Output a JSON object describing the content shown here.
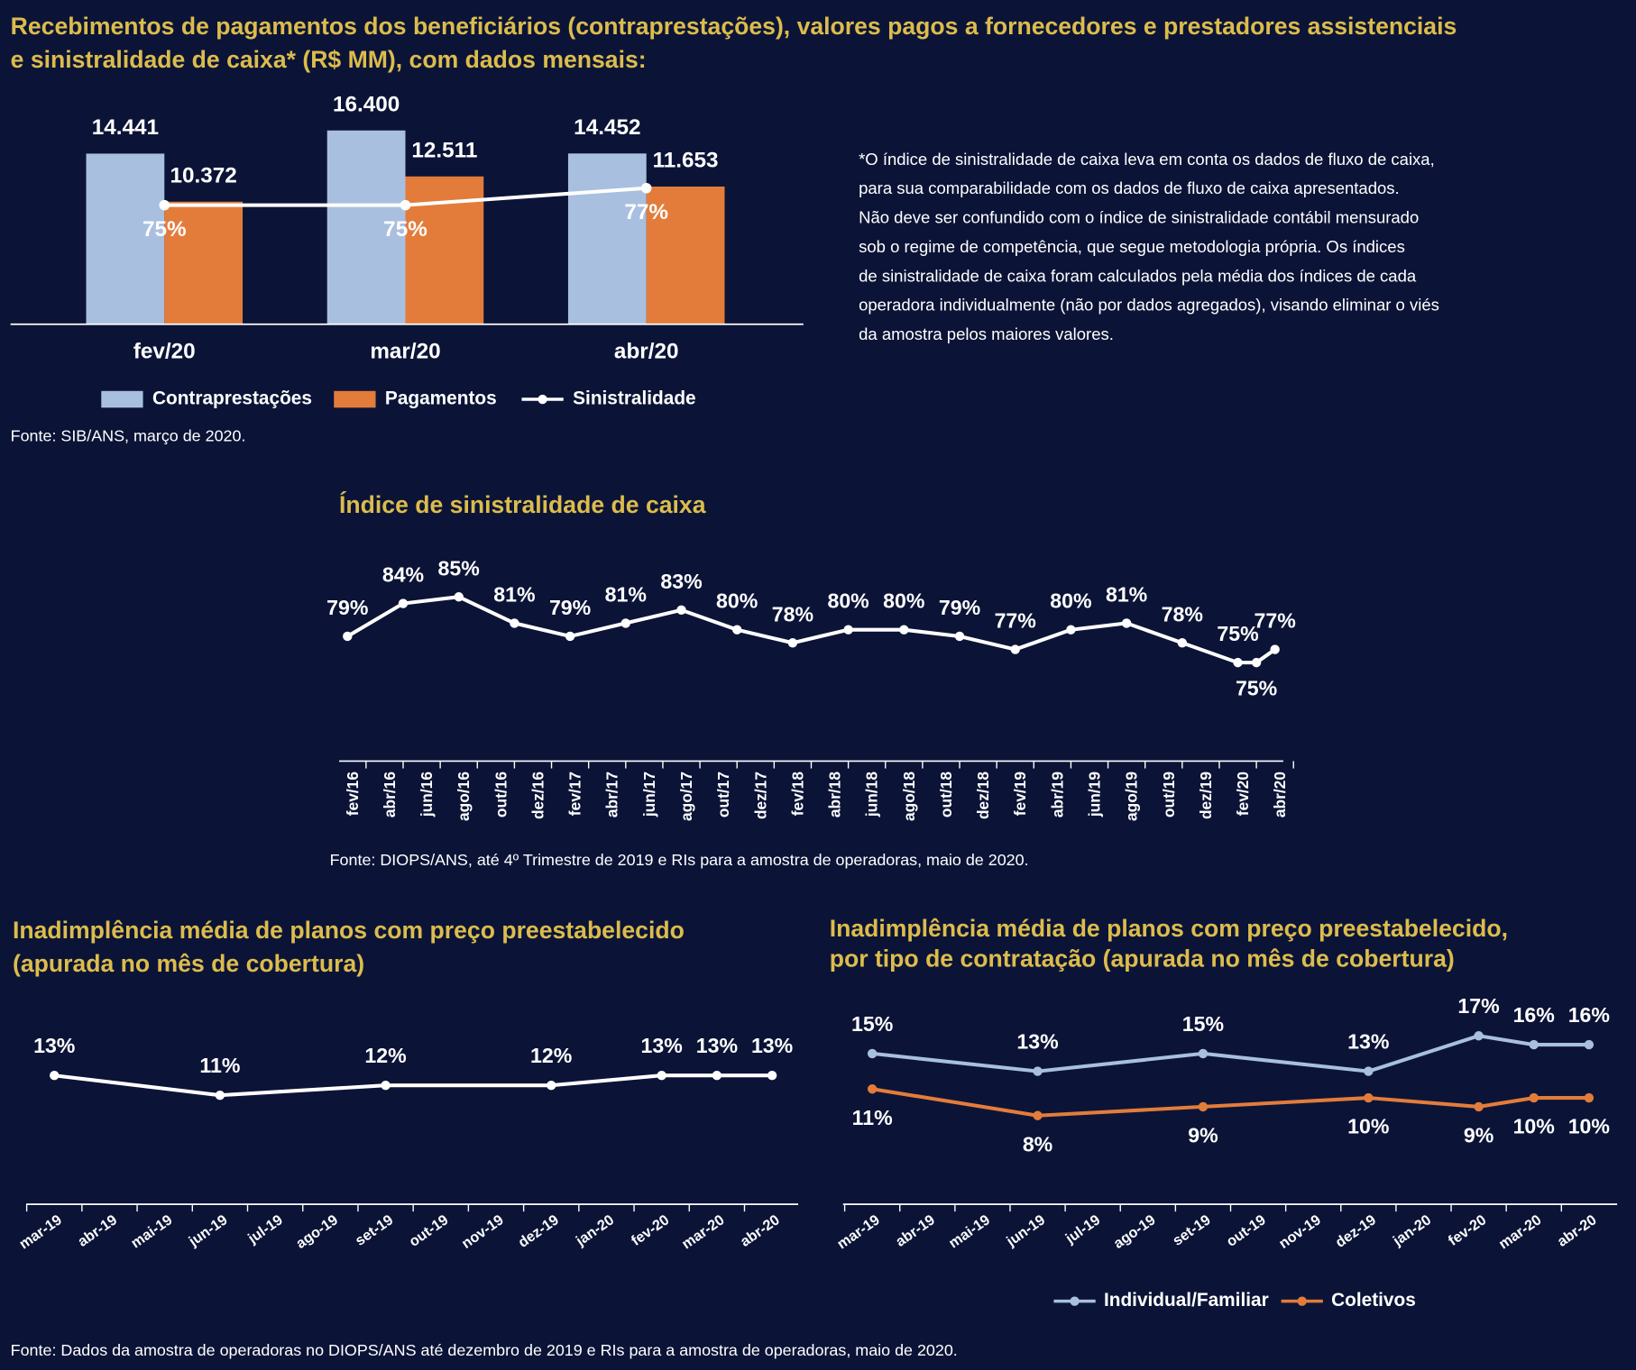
{
  "note": [
    "*O índice de sinistralidade de caixa leva em conta os dados de fluxo de caixa,",
    "para sua comparabilidade com os dados de fluxo de caixa apresentados.",
    "Não deve ser confundido com o índice de sinistralidade contábil mensurado",
    "sob o regime de competência, que segue metodologia própria. Os índices",
    "de sinistralidade de caixa foram calculados pela média dos índices de cada",
    "operadora individualmente (não por dados agregados), visando eliminar o viés",
    "da amostra pelos maiores valores."
  ],
  "source": "Fonte: Dados da amostra de operadoras no DIOPS/ANS até dezembro de 2019 e RIs para a amostra de operadoras, maio de 2020.",
  "chart_data": [
    {
      "type": "bar",
      "title": [
        "Recebimentos de pagamentos dos beneficiários (contraprestações), valores pagos a fornecedores e prestadores assistenciais",
        "e sinistralidade de caixa* (R$ MM), com dados mensais:"
      ],
      "categories": [
        "fev/20",
        "mar/20",
        "abr/20"
      ],
      "series": [
        {
          "name": "Contraprestações",
          "color": "#a9bfe0",
          "values": [
            14441,
            16400,
            14452
          ],
          "value_labels": [
            "14.441",
            "16.400",
            "14.452"
          ]
        },
        {
          "name": "Pagamentos",
          "color": "#e37c3b",
          "values": [
            10372,
            12511,
            11653
          ],
          "value_labels": [
            "10.372",
            "12.511",
            "11.653"
          ]
        },
        {
          "name": "Sinistralidade",
          "type": "line",
          "axis": "y2",
          "color": "#ffffff",
          "values": [
            75,
            75,
            77
          ],
          "value_labels": [
            "75%",
            "75%",
            "77%"
          ]
        }
      ],
      "ylim": [
        0,
        18000
      ],
      "y2lim": [
        61,
        86
      ],
      "legend": "bottom",
      "source": "Fonte: SIB/ANS, março de 2020."
    },
    {
      "type": "line",
      "title": "Índice de sinistralidade de caixa",
      "x": [
        "2016-02",
        "2016-05",
        "2016-08",
        "2016-11",
        "2017-02",
        "2017-05",
        "2017-08",
        "2017-11",
        "2018-02",
        "2018-05",
        "2018-08",
        "2018-11",
        "2019-02",
        "2019-05",
        "2019-08",
        "2019-11",
        "2020-02",
        "2020-03",
        "2020-04"
      ],
      "values": [
        79,
        84,
        85,
        81,
        79,
        81,
        83,
        80,
        78,
        80,
        80,
        79,
        77,
        80,
        81,
        78,
        75,
        75,
        77
      ],
      "value_labels": [
        "79%",
        "84%",
        "85%",
        "81%",
        "79%",
        "81%",
        "83%",
        "80%",
        "78%",
        "80%",
        "80%",
        "79%",
        "77%",
        "80%",
        "81%",
        "78%",
        "75%",
        "75%",
        "77%"
      ],
      "color": "#ffffff",
      "xlim": [
        "2016-02",
        "2020-04"
      ],
      "xticks": [
        {
          "value": "2016-02",
          "label": "fev/16"
        },
        {
          "value": "2016-04",
          "label": "abr/16"
        },
        {
          "value": "2016-06",
          "label": "jun/16"
        },
        {
          "value": "2016-08",
          "label": "ago/16"
        },
        {
          "value": "2016-10",
          "label": "out/16"
        },
        {
          "value": "2016-12",
          "label": "dez/16"
        },
        {
          "value": "2017-02",
          "label": "fev/17"
        },
        {
          "value": "2017-04",
          "label": "abr/17"
        },
        {
          "value": "2017-06",
          "label": "jun/17"
        },
        {
          "value": "2017-08",
          "label": "ago/17"
        },
        {
          "value": "2017-10",
          "label": "out/17"
        },
        {
          "value": "2017-12",
          "label": "dez/17"
        },
        {
          "value": "2018-02",
          "label": "fev/18"
        },
        {
          "value": "2018-04",
          "label": "abr/18"
        },
        {
          "value": "2018-06",
          "label": "jun/18"
        },
        {
          "value": "2018-08",
          "label": "ago/18"
        },
        {
          "value": "2018-10",
          "label": "out/18"
        },
        {
          "value": "2018-12",
          "label": "dez/18"
        },
        {
          "value": "2019-02",
          "label": "fev/19"
        },
        {
          "value": "2019-04",
          "label": "abr/19"
        },
        {
          "value": "2019-06",
          "label": "jun/19"
        },
        {
          "value": "2019-08",
          "label": "ago/19"
        },
        {
          "value": "2019-10",
          "label": "out/19"
        },
        {
          "value": "2019-12",
          "label": "dez/19"
        },
        {
          "value": "2020-02",
          "label": "fev/20"
        },
        {
          "value": "2020-04",
          "label": "abr/20"
        }
      ],
      "ylim": [
        60,
        90
      ],
      "source": "Fonte: DIOPS/ANS, até 4º Trimestre de 2019 e RIs para a amostra de operadoras, maio de 2020."
    },
    {
      "type": "line",
      "title": [
        "Inadimplência média de planos com preço preestabelecido",
        "(apurada no mês de cobertura)"
      ],
      "x": [
        "2019-03",
        "2019-06",
        "2019-09",
        "2019-12",
        "2020-02",
        "2020-03",
        "2020-04"
      ],
      "values": [
        13,
        11,
        12,
        12,
        13,
        13,
        13
      ],
      "value_labels": [
        "13%",
        "11%",
        "12%",
        "12%",
        "13%",
        "13%",
        "13%"
      ],
      "color": "#ffffff",
      "xlim": [
        "2019-03",
        "2020-04"
      ],
      "xticks": [
        {
          "value": "2019-03",
          "label": "mar-19"
        },
        {
          "value": "2019-04",
          "label": "abr-19"
        },
        {
          "value": "2019-05",
          "label": "mai-19"
        },
        {
          "value": "2019-06",
          "label": "jun-19"
        },
        {
          "value": "2019-07",
          "label": "jul-19"
        },
        {
          "value": "2019-08",
          "label": "ago-19"
        },
        {
          "value": "2019-09",
          "label": "set-19"
        },
        {
          "value": "2019-10",
          "label": "out-19"
        },
        {
          "value": "2019-11",
          "label": "nov-19"
        },
        {
          "value": "2019-12",
          "label": "dez-19"
        },
        {
          "value": "2020-01",
          "label": "jan-20"
        },
        {
          "value": "2020-02",
          "label": "fev-20"
        },
        {
          "value": "2020-03",
          "label": "mar-20"
        },
        {
          "value": "2020-04",
          "label": "abr-20"
        }
      ],
      "ylim": [
        0,
        20
      ]
    },
    {
      "type": "line",
      "title": [
        "Inadimplência média de planos com preço preestabelecido,",
        "por tipo de contratação (apurada no mês de cobertura)"
      ],
      "x": [
        "2019-03",
        "2019-06",
        "2019-09",
        "2019-12",
        "2020-02",
        "2020-03",
        "2020-04"
      ],
      "series": [
        {
          "name": "Individual/Familiar",
          "color": "#a9bfe0",
          "values": [
            15,
            13,
            15,
            13,
            17,
            16,
            16
          ],
          "value_labels": [
            "15%",
            "13%",
            "15%",
            "13%",
            "17%",
            "16%",
            "16%"
          ]
        },
        {
          "name": "Coletivos",
          "color": "#e37c3b",
          "values": [
            11,
            8,
            9,
            10,
            9,
            10,
            10
          ],
          "value_labels": [
            "11%",
            "8%",
            "9%",
            "10%",
            "9%",
            "10%",
            "10%"
          ]
        }
      ],
      "xlim": [
        "2019-03",
        "2020-04"
      ],
      "xticks": [
        {
          "value": "2019-03",
          "label": "mar-19"
        },
        {
          "value": "2019-04",
          "label": "abr-19"
        },
        {
          "value": "2019-05",
          "label": "mai-19"
        },
        {
          "value": "2019-06",
          "label": "jun-19"
        },
        {
          "value": "2019-07",
          "label": "jul-19"
        },
        {
          "value": "2019-08",
          "label": "ago-19"
        },
        {
          "value": "2019-09",
          "label": "set-19"
        },
        {
          "value": "2019-10",
          "label": "out-19"
        },
        {
          "value": "2019-11",
          "label": "nov-19"
        },
        {
          "value": "2019-12",
          "label": "dez-19"
        },
        {
          "value": "2020-01",
          "label": "jan-20"
        },
        {
          "value": "2020-02",
          "label": "fev-20"
        },
        {
          "value": "2020-03",
          "label": "mar-20"
        },
        {
          "value": "2020-04",
          "label": "abr-20"
        }
      ],
      "ylim": [
        -2,
        20
      ],
      "legend": "bottom"
    }
  ]
}
